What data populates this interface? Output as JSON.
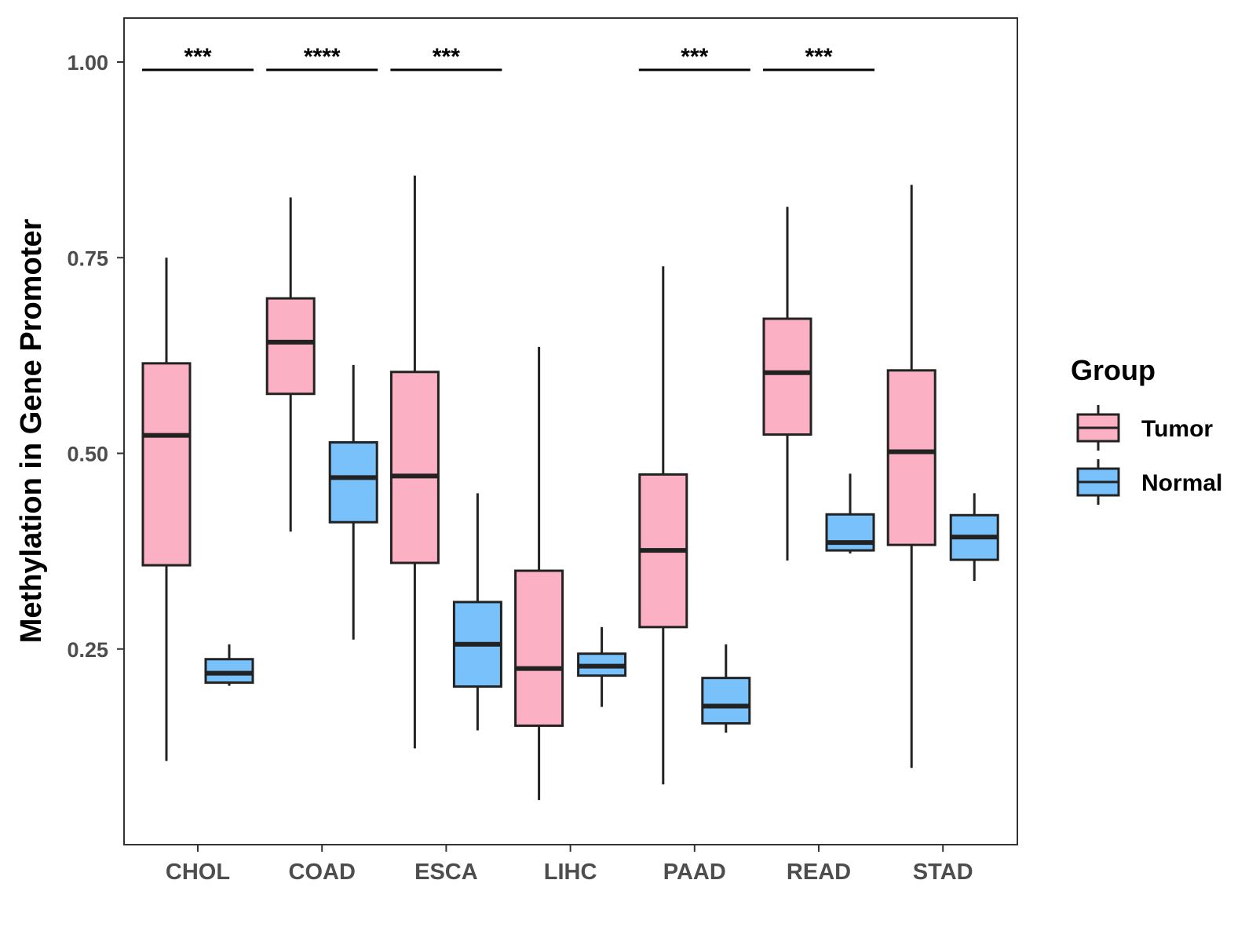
{
  "chart_data": {
    "type": "boxplot",
    "title": "",
    "xlabel": "",
    "ylabel": "Methylation in Gene Promoter",
    "ylim": [
      0.0,
      1.056
    ],
    "yticks": [
      0.25,
      0.5,
      0.75,
      1.0
    ],
    "ytick_labels": [
      "0.25",
      "0.50",
      "0.75",
      "1.00"
    ],
    "categories": [
      "CHOL",
      "COAD",
      "ESCA",
      "LIHC",
      "PAAD",
      "READ",
      "STAD"
    ],
    "legend": {
      "title": "Group",
      "position": "right",
      "entries": [
        {
          "name": "Tumor",
          "color": "#fbb1c3"
        },
        {
          "name": "Normal",
          "color": "#78c1fb"
        }
      ]
    },
    "series": [
      {
        "name": "Tumor",
        "color": "#fbb1c3",
        "boxes": [
          {
            "min": 0.107,
            "q1": 0.357,
            "median": 0.523,
            "q3": 0.615,
            "max": 0.75
          },
          {
            "min": 0.4,
            "q1": 0.576,
            "median": 0.642,
            "q3": 0.698,
            "max": 0.827
          },
          {
            "min": 0.123,
            "q1": 0.36,
            "median": 0.471,
            "q3": 0.604,
            "max": 0.855
          },
          {
            "min": 0.057,
            "q1": 0.152,
            "median": 0.225,
            "q3": 0.35,
            "max": 0.636
          },
          {
            "min": 0.077,
            "q1": 0.278,
            "median": 0.376,
            "q3": 0.473,
            "max": 0.739
          },
          {
            "min": 0.363,
            "q1": 0.524,
            "median": 0.603,
            "q3": 0.672,
            "max": 0.815
          },
          {
            "min": 0.098,
            "q1": 0.383,
            "median": 0.502,
            "q3": 0.606,
            "max": 0.843
          }
        ]
      },
      {
        "name": "Normal",
        "color": "#78c1fb",
        "boxes": [
          {
            "min": 0.203,
            "q1": 0.207,
            "median": 0.219,
            "q3": 0.237,
            "max": 0.256
          },
          {
            "min": 0.262,
            "q1": 0.412,
            "median": 0.469,
            "q3": 0.514,
            "max": 0.613
          },
          {
            "min": 0.146,
            "q1": 0.202,
            "median": 0.256,
            "q3": 0.31,
            "max": 0.449
          },
          {
            "min": 0.176,
            "q1": 0.216,
            "median": 0.228,
            "q3": 0.244,
            "max": 0.278
          },
          {
            "min": 0.143,
            "q1": 0.155,
            "median": 0.177,
            "q3": 0.213,
            "max": 0.256
          },
          {
            "min": 0.372,
            "q1": 0.376,
            "median": 0.386,
            "q3": 0.422,
            "max": 0.474
          },
          {
            "min": 0.337,
            "q1": 0.364,
            "median": 0.393,
            "q3": 0.421,
            "max": 0.449
          }
        ]
      }
    ],
    "significance": [
      {
        "category": "CHOL",
        "label": "***",
        "y": 0.99
      },
      {
        "category": "COAD",
        "label": "****",
        "y": 0.99
      },
      {
        "category": "ESCA",
        "label": "***",
        "y": 0.99
      },
      {
        "category": "PAAD",
        "label": "***",
        "y": 0.99
      },
      {
        "category": "READ",
        "label": "***",
        "y": 0.99
      }
    ]
  }
}
